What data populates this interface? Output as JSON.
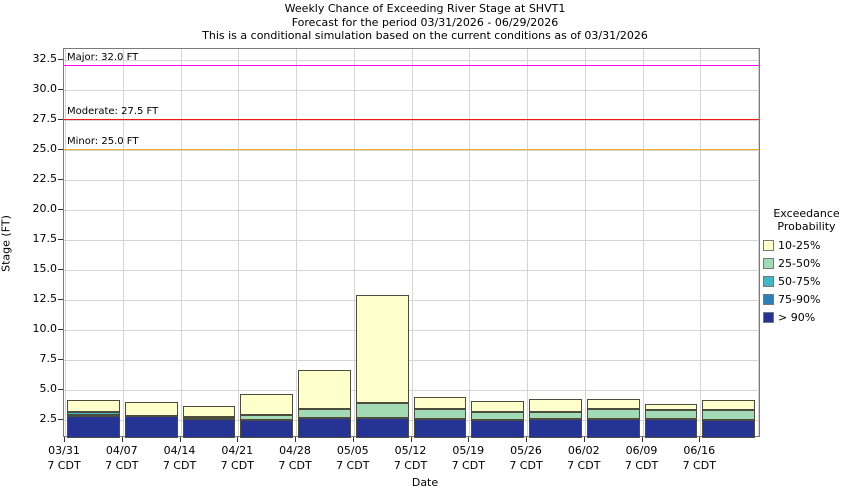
{
  "title": {
    "line1": "Weekly Chance of Exceeding River Stage at SHVT1",
    "line2": "Forecast for the period 03/31/2026 - 06/29/2026",
    "line3": "This is a conditional simulation based on the current conditions as of 03/31/2026"
  },
  "y_axis": {
    "label": "Stage (FT)",
    "min": 1.0,
    "max": 33.4,
    "ticks": [
      2.5,
      5.0,
      7.5,
      10.0,
      12.5,
      15.0,
      17.5,
      20.0,
      22.5,
      25.0,
      27.5,
      30.0,
      32.5
    ]
  },
  "x_axis": {
    "label": "Date",
    "tick_line2": "7 CDT"
  },
  "thresholds": [
    {
      "name": "major",
      "label": "Major: 32.0 FT",
      "value": 32.0,
      "color": "#ff00ff"
    },
    {
      "name": "moderate",
      "label": "Moderate: 27.5 FT",
      "value": 27.5,
      "color": "#f01818"
    },
    {
      "name": "minor",
      "label": "Minor: 25.0 FT",
      "value": 25.0,
      "color": "#eeb022"
    }
  ],
  "legend": {
    "title_line1": "Exceedance",
    "title_line2": "Probability",
    "items": [
      {
        "label": "10-25%",
        "band": "10-25%",
        "color": "#ffffcc"
      },
      {
        "label": "25-50%",
        "band": "25-50%",
        "color": "#a1dab4"
      },
      {
        "label": "50-75%",
        "band": "50-75%",
        "color": "#41b6c4"
      },
      {
        "label": "75-90%",
        "band": "75-90%",
        "color": "#2c7fb8"
      },
      {
        "label": "> 90%",
        "band": ">90%",
        "color": "#253494"
      }
    ]
  },
  "chart_data": {
    "type": "bar",
    "subtype": "stacked-exceedance",
    "title": "Weekly Chance of Exceeding River Stage at SHVT1",
    "xlabel": "Date",
    "ylabel": "Stage (FT)",
    "ylim": [
      1.0,
      33.4
    ],
    "grid": true,
    "legend_position": "right",
    "band_colors": {
      ">90%": "#253494",
      "75-90%": "#2c7fb8",
      "50-75%": "#41b6c4",
      "25-50%": "#a1dab4",
      "10-25%": "#ffffcc"
    },
    "base_stage": 1.0,
    "bars": [
      {
        "date": "03/31",
        "segments": [
          {
            "band": ">90%",
            "top": 2.8
          },
          {
            "band": "75-90%",
            "top": 2.9
          },
          {
            "band": "50-75%",
            "top": 3.2
          },
          {
            "band": "10-25%",
            "top": 4.15
          }
        ]
      },
      {
        "date": "04/07",
        "segments": [
          {
            "band": ">90%",
            "top": 2.8
          },
          {
            "band": "10-25%",
            "top": 4.0
          }
        ]
      },
      {
        "date": "04/14",
        "segments": [
          {
            "band": ">90%",
            "top": 2.6
          },
          {
            "band": "25-50%",
            "top": 2.75
          },
          {
            "band": "10-25%",
            "top": 3.7
          }
        ]
      },
      {
        "date": "04/21",
        "segments": [
          {
            "band": ">90%",
            "top": 2.5
          },
          {
            "band": "25-50%",
            "top": 2.9
          },
          {
            "band": "10-25%",
            "top": 4.7
          }
        ]
      },
      {
        "date": "04/28",
        "segments": [
          {
            "band": ">90%",
            "top": 2.65
          },
          {
            "band": "25-50%",
            "top": 3.45
          },
          {
            "band": "10-25%",
            "top": 6.7
          }
        ]
      },
      {
        "date": "05/05",
        "segments": [
          {
            "band": ">90%",
            "top": 2.65
          },
          {
            "band": "25-50%",
            "top": 3.95
          },
          {
            "band": "10-25%",
            "top": 12.95
          }
        ]
      },
      {
        "date": "05/12",
        "segments": [
          {
            "band": ">90%",
            "top": 2.6
          },
          {
            "band": "25-50%",
            "top": 3.45
          },
          {
            "band": "10-25%",
            "top": 4.45
          }
        ]
      },
      {
        "date": "05/19",
        "segments": [
          {
            "band": ">90%",
            "top": 2.5
          },
          {
            "band": "25-50%",
            "top": 3.15
          },
          {
            "band": "10-25%",
            "top": 4.05
          }
        ]
      },
      {
        "date": "05/26",
        "segments": [
          {
            "band": ">90%",
            "top": 2.55
          },
          {
            "band": "25-50%",
            "top": 3.2
          },
          {
            "band": "10-25%",
            "top": 4.25
          }
        ]
      },
      {
        "date": "06/02",
        "segments": [
          {
            "band": ">90%",
            "top": 2.55
          },
          {
            "band": "25-50%",
            "top": 3.45
          },
          {
            "band": "10-25%",
            "top": 4.25
          }
        ]
      },
      {
        "date": "06/09",
        "segments": [
          {
            "band": ">90%",
            "top": 2.55
          },
          {
            "band": "25-50%",
            "top": 3.35
          },
          {
            "band": "10-25%",
            "top": 3.8
          }
        ]
      },
      {
        "date": "06/16",
        "segments": [
          {
            "band": ">90%",
            "top": 2.5
          },
          {
            "band": "25-50%",
            "top": 3.3
          },
          {
            "band": "10-25%",
            "top": 4.2
          }
        ]
      }
    ]
  }
}
